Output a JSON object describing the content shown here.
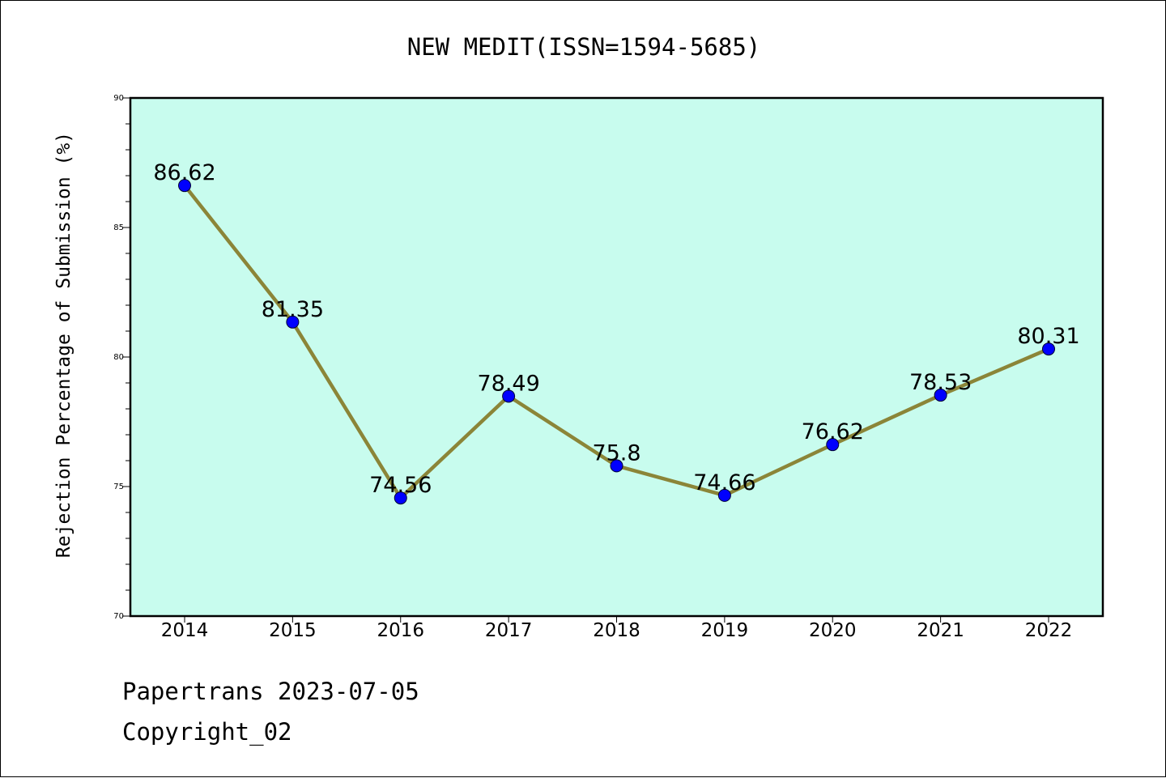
{
  "chart_data": {
    "type": "line",
    "title": "NEW MEDIT(ISSN=1594-5685)",
    "xlabel": "",
    "ylabel": "Rejection Percentage of Submission (%)",
    "categories": [
      "2014",
      "2015",
      "2016",
      "2017",
      "2018",
      "2019",
      "2020",
      "2021",
      "2022"
    ],
    "series": [
      {
        "values": [
          86.62,
          81.35,
          74.56,
          78.49,
          75.8,
          74.66,
          76.62,
          78.53,
          80.31
        ],
        "data_labels": [
          "86.62",
          "81.35",
          "74.56",
          "78.49",
          "75.8",
          "74.66",
          "76.62",
          "78.53",
          "80.31"
        ],
        "line_color": "#8b8538",
        "marker_color": "#0000ff"
      }
    ],
    "ylim": [
      70,
      90
    ],
    "yticks": [
      "70",
      "75",
      "80",
      "85",
      "90"
    ],
    "grid": false,
    "legend": "none",
    "plot_background": "#c8fcee"
  },
  "footer": {
    "line1": "Papertrans 2023-07-05",
    "line2": "Copyright_02"
  }
}
